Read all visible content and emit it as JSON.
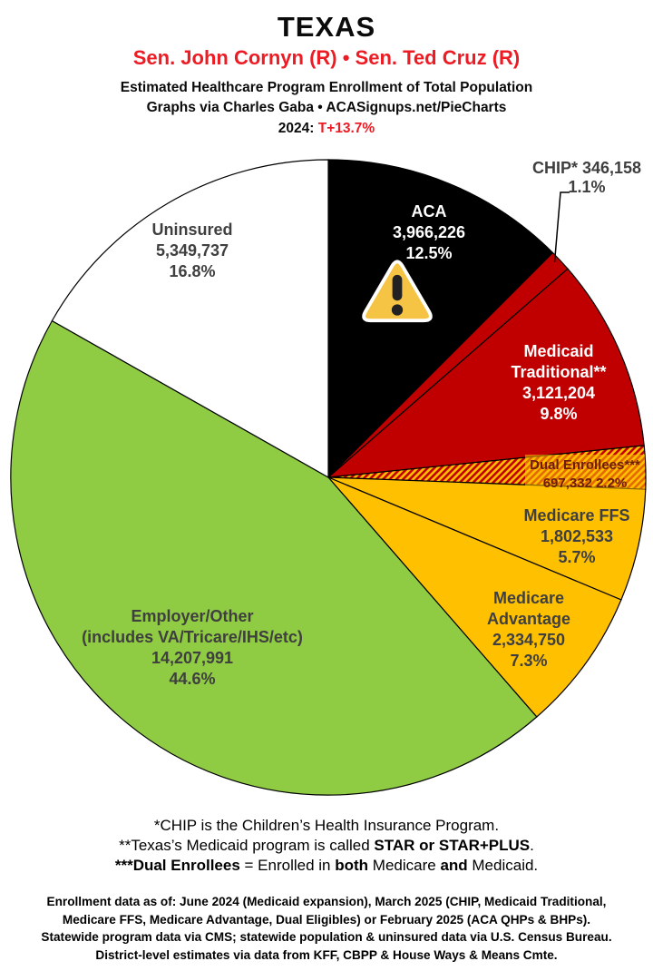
{
  "header": {
    "state": "TEXAS",
    "senators": "Sen. John Cornyn (R) • Sen. Ted Cruz (R)",
    "subtitle1": "Estimated Healthcare Program Enrollment of Total Population",
    "subtitle2": "Graphs via Charles Gaba   •   ACASignups.net/PieCharts",
    "year_label": "2024:",
    "year_value": "T+13.7%"
  },
  "colors": {
    "accent_red": "#ED1C24",
    "pie_red": "#C00000",
    "pie_gold": "#FFC000",
    "pie_green": "#8FCB43",
    "pie_black": "#000000",
    "pie_white": "#FFFFFF",
    "label_gray": "#3F3F3F",
    "dual_text": "#6B1D09"
  },
  "chart_data": {
    "type": "pie",
    "title": "Estimated Healthcare Program Enrollment of Total Population — Texas, 2024",
    "start_angle_deg": 0,
    "direction": "clockwise",
    "legend": "none",
    "slices": [
      {
        "id": "aca",
        "label": "ACA",
        "value": 3966226,
        "value_text": "3,966,226",
        "percent": 12.5,
        "pct_text": "12.5%",
        "color": "#000000",
        "icon": "warning-triangle"
      },
      {
        "id": "chip",
        "label": "CHIP*",
        "value": 346158,
        "value_text": "346,158",
        "percent": 1.1,
        "pct_text": "1.1%",
        "color": "#C00000"
      },
      {
        "id": "medicaid-traditional",
        "label": "Medicaid Traditional**",
        "value": 3121204,
        "value_text": "3,121,204",
        "percent": 9.8,
        "pct_text": "9.8%",
        "color": "#C00000"
      },
      {
        "id": "dual-enrollees",
        "label": "Dual Enrollees***",
        "value": 697332,
        "value_text": "697,332",
        "percent": 2.2,
        "pct_text": "2.2%",
        "fill": "hatch",
        "hatch_colors": [
          "#FFC000",
          "#C00000"
        ]
      },
      {
        "id": "medicare-ffs",
        "label": "Medicare FFS",
        "value": 1802533,
        "value_text": "1,802,533",
        "percent": 5.7,
        "pct_text": "5.7%",
        "color": "#FFC000"
      },
      {
        "id": "medicare-advantage",
        "label": "Medicare Advantage",
        "value": 2334750,
        "value_text": "2,334,750",
        "percent": 7.3,
        "pct_text": "7.3%",
        "color": "#FFC000"
      },
      {
        "id": "employer-other",
        "label": "Employer/Other",
        "sublabel": "(includes VA/Tricare/IHS/etc)",
        "value": 14207991,
        "value_text": "14,207,991",
        "percent": 44.6,
        "pct_text": "44.6%",
        "color": "#8FCB43"
      },
      {
        "id": "uninsured",
        "label": "Uninsured",
        "value": 5349737,
        "value_text": "5,349,737",
        "percent": 16.8,
        "pct_text": "16.8%",
        "color": "#FFFFFF"
      }
    ]
  },
  "footnotes": {
    "line1": "*CHIP is the Children’s Health Insurance Program.",
    "line2_pre": "**Texas’s Medicaid program is called ",
    "line2_bold": "STAR or STAR+PLUS",
    "line2_post": ".",
    "line3_bold1": "***Dual Enrollees",
    "line3_mid1": " = Enrolled in ",
    "line3_bold2": "both",
    "line3_mid2": " Medicare ",
    "line3_bold3": "and",
    "line3_post": " Medicaid."
  },
  "footer": {
    "lines": [
      "Enrollment data as of: June 2024 (Medicaid expansion), March 2025 (CHIP, Medicaid Traditional,",
      "Medicare FFS, Medicare Advantage, Dual Eligibles) or February 2025 (ACA QHPs & BHPs).",
      "Statewide program data via CMS; statewide population & uninsured data via U.S. Census Bureau.",
      "District-level estimates via data from KFF, CBPP & House Ways & Means Cmte."
    ]
  }
}
